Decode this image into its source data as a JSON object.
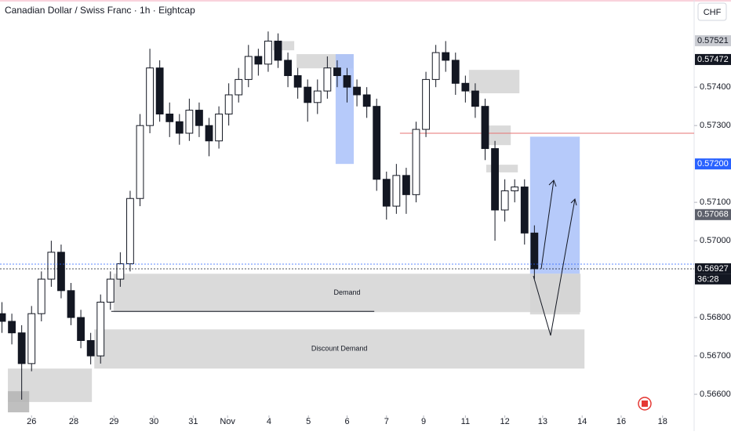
{
  "chart_data": {
    "type": "candlestick",
    "title": "Canadian Dollar / Swiss Franc · 1h · Eightcap",
    "currency": "CHF",
    "countdown": "36:28",
    "x": [
      -0.75,
      -0.5,
      -0.25,
      0,
      0.25,
      0.5,
      0.75,
      1,
      1.25,
      1.5,
      1.75,
      2,
      2.25,
      2.5,
      2.75,
      3,
      3.25,
      3.5,
      3.75,
      4,
      4.25,
      4.5,
      4.75,
      5,
      5.25,
      5.5,
      5.75,
      6,
      6.25,
      6.5,
      6.75,
      7,
      7.25,
      7.5,
      7.75,
      8,
      8.25,
      8.5,
      8.75,
      9,
      9.25,
      9.5,
      9.75,
      10,
      10.25,
      10.5,
      10.75,
      11,
      11.25,
      11.5,
      11.75,
      12,
      12.25,
      12.5,
      12.75
    ],
    "open": [
      0.5681,
      0.5679,
      0.5676,
      0.5668,
      0.5681,
      0.569,
      0.5697,
      0.5687,
      0.568,
      0.5674,
      0.567,
      0.5684,
      0.569,
      0.5694,
      0.5711,
      0.573,
      0.5745,
      0.5733,
      0.5731,
      0.5728,
      0.5734,
      0.573,
      0.5726,
      0.5733,
      0.5738,
      0.5742,
      0.5748,
      0.5746,
      0.5752,
      0.5747,
      0.5743,
      0.574,
      0.5736,
      0.5739,
      0.5745,
      0.5743,
      0.574,
      0.5738,
      0.5735,
      0.5716,
      0.5709,
      0.5717,
      0.5712,
      0.5729,
      0.5742,
      0.5749,
      0.5747,
      0.5741,
      0.5739,
      0.5735,
      0.5724,
      0.5708,
      0.5713,
      0.5714,
      0.5702
    ],
    "high": [
      0.5684,
      0.5681,
      0.5678,
      0.5683,
      0.5692,
      0.57,
      0.5699,
      0.5689,
      0.5682,
      0.5676,
      0.5686,
      0.5692,
      0.5697,
      0.5713,
      0.5733,
      0.575,
      0.5747,
      0.5736,
      0.5733,
      0.5737,
      0.5736,
      0.5732,
      0.5735,
      0.5741,
      0.5745,
      0.5751,
      0.575,
      0.57545,
      0.5754,
      0.5749,
      0.5745,
      0.5742,
      0.5742,
      0.5748,
      0.5747,
      0.5745,
      0.5742,
      0.574,
      0.5737,
      0.5718,
      0.572,
      0.5719,
      0.5731,
      0.5744,
      0.5751,
      0.5752,
      0.5749,
      0.5743,
      0.5741,
      0.5737,
      0.5726,
      0.5716,
      0.5716,
      0.5716,
      0.5704
    ],
    "low": [
      0.5676,
      0.5673,
      0.56586,
      0.5666,
      0.5679,
      0.5688,
      0.5685,
      0.5678,
      0.5672,
      0.56678,
      0.5668,
      0.5682,
      0.5688,
      0.5692,
      0.5709,
      0.5728,
      0.5731,
      0.5727,
      0.5725,
      0.5726,
      0.5727,
      0.5722,
      0.5724,
      0.573,
      0.5736,
      0.574,
      0.5743,
      0.5744,
      0.5745,
      0.574,
      0.5737,
      0.5731,
      0.5733,
      0.5737,
      0.574,
      0.5736,
      0.5735,
      0.5732,
      0.5713,
      0.57055,
      0.5707,
      0.5707,
      0.571,
      0.5727,
      0.574,
      0.5744,
      0.5738,
      0.5736,
      0.5732,
      0.5721,
      0.57,
      0.5705,
      0.571,
      0.5699,
      0.569
    ],
    "close": [
      0.5679,
      0.5676,
      0.5668,
      0.5681,
      0.569,
      0.5697,
      0.5687,
      0.568,
      0.5674,
      0.567,
      0.5684,
      0.569,
      0.5694,
      0.5711,
      0.573,
      0.5745,
      0.5733,
      0.5731,
      0.5728,
      0.5734,
      0.573,
      0.5726,
      0.5733,
      0.5738,
      0.5742,
      0.5748,
      0.5746,
      0.5752,
      0.5747,
      0.5743,
      0.574,
      0.5736,
      0.5739,
      0.5745,
      0.5743,
      0.574,
      0.5738,
      0.5735,
      0.5716,
      0.5709,
      0.5717,
      0.5712,
      0.5729,
      0.5742,
      0.5749,
      0.5747,
      0.5741,
      0.5739,
      0.5735,
      0.5724,
      0.5708,
      0.5713,
      0.5714,
      0.5702,
      0.56927
    ],
    "xlim": [
      -0.8,
      16.8
    ],
    "ylim": [
      0.56545,
      0.57627
    ],
    "xticks": [
      {
        "value": 0,
        "label": "26"
      },
      {
        "value": 1.07,
        "label": "28"
      },
      {
        "value": 2.09,
        "label": "29"
      },
      {
        "value": 3.1,
        "label": "30"
      },
      {
        "value": 4.1,
        "label": "31"
      },
      {
        "value": 4.97,
        "label": "Nov"
      },
      {
        "value": 6.02,
        "label": "4"
      },
      {
        "value": 7.02,
        "label": "5"
      },
      {
        "value": 8,
        "label": "6"
      },
      {
        "value": 9,
        "label": "7"
      },
      {
        "value": 9.94,
        "label": "9"
      },
      {
        "value": 11,
        "label": "11"
      },
      {
        "value": 12,
        "label": "12"
      },
      {
        "value": 12.96,
        "label": "13"
      },
      {
        "value": 13.96,
        "label": "14"
      },
      {
        "value": 14.95,
        "label": "16"
      },
      {
        "value": 16,
        "label": "18"
      }
    ],
    "yticks": [
      {
        "value": 0.574,
        "label": "0.57400"
      },
      {
        "value": 0.573,
        "label": "0.57300"
      },
      {
        "value": 0.571,
        "label": "0.57100"
      },
      {
        "value": 0.57,
        "label": "0.57000"
      },
      {
        "value": 0.568,
        "label": "0.56800"
      },
      {
        "value": 0.567,
        "label": "0.56700"
      },
      {
        "value": 0.566,
        "label": "0.56600"
      }
    ],
    "price_labels": [
      {
        "value": 0.57521,
        "label": "0.57521",
        "color": "#c9cbd1"
      },
      {
        "value": 0.57472,
        "label": "0.57472",
        "color": "#131722"
      },
      {
        "value": 0.572,
        "label": "0.57200",
        "color": "#2962ff"
      },
      {
        "value": 0.57068,
        "label": "0.57068",
        "color": "#5d606b"
      },
      {
        "value": 0.56927,
        "label": "0.56927",
        "color": "#131722"
      }
    ],
    "zones": [
      {
        "x": [
          2.08,
          13.92
        ],
        "y": [
          0.56814,
          0.56914
        ],
        "color": "#d4d4d4",
        "label": "Demand"
      },
      {
        "x": [
          1.59,
          14.02
        ],
        "y": [
          0.56667,
          0.56769
        ],
        "color": "#d4d4d4",
        "label": "Discount Demand"
      },
      {
        "x": [
          -0.6,
          1.53
        ],
        "y": [
          0.5658,
          0.56667
        ],
        "color": "#d4d4d4"
      },
      {
        "x": [
          -0.6,
          -0.06
        ],
        "y": [
          0.56553,
          0.56608
        ],
        "color": "#b4b4b4"
      },
      {
        "x": [
          6.12,
          6.66
        ],
        "y": [
          0.57496,
          0.5752
        ],
        "color": "#d4d4d4"
      },
      {
        "x": [
          6.72,
          8.15
        ],
        "y": [
          0.57449,
          0.57486
        ],
        "color": "#d4d4d4"
      },
      {
        "x": [
          11.09,
          12.37
        ],
        "y": [
          0.57384,
          0.57445
        ],
        "color": "#d4d4d4"
      },
      {
        "x": [
          11.43,
          12.15
        ],
        "y": [
          0.57249,
          0.573
        ],
        "color": "#d4d4d4"
      },
      {
        "x": [
          11.53,
          12.33
        ],
        "y": [
          0.57178,
          0.57198
        ],
        "color": "#d4d4d4"
      },
      {
        "x": [
          7.71,
          8.17
        ],
        "y": [
          0.572,
          0.57486
        ],
        "color": "#a9c1f9"
      },
      {
        "x": [
          12.64,
          13.9
        ],
        "y": [
          0.56914,
          0.57271
        ],
        "color": "#a9c1f9"
      },
      {
        "x": [
          12.64,
          13.9
        ],
        "y": [
          0.56808,
          0.56914
        ],
        "color": "#d4d4d4"
      }
    ],
    "lines": [
      {
        "value": 0.5728,
        "x": [
          9.34,
          16.8
        ],
        "color": "#e57373"
      },
      {
        "value": 0.56816,
        "x": [
          2.02,
          8.69
        ],
        "color": "#131722"
      }
    ]
  }
}
